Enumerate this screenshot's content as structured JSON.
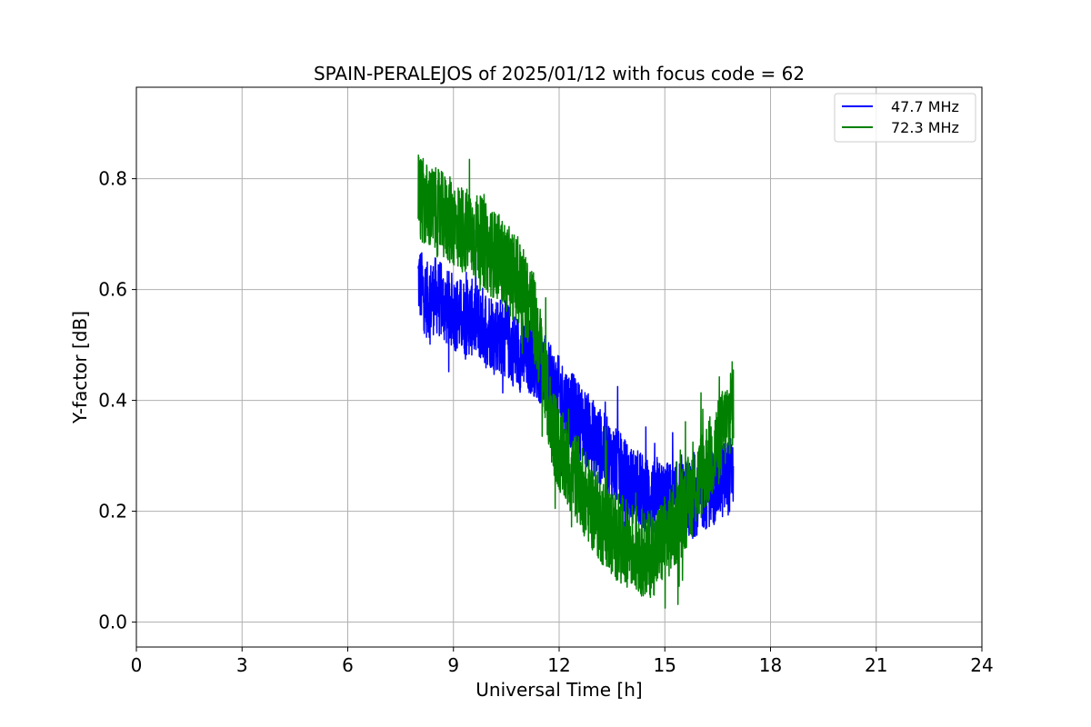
{
  "chart_data": {
    "type": "line",
    "title": "SPAIN-PERALEJOS of 2025/01/12 with focus code = 62",
    "xlabel": "Universal Time [h]",
    "ylabel": "Y-factor [dB]",
    "xlim": [
      0,
      24
    ],
    "ylim": [
      -0.045,
      0.965
    ],
    "xticks": [
      0,
      3,
      6,
      9,
      12,
      15,
      18,
      21,
      24
    ],
    "xtick_labels": [
      "0",
      "3",
      "6",
      "9",
      "12",
      "15",
      "18",
      "21",
      "24"
    ],
    "yticks": [
      0.0,
      0.2,
      0.4,
      0.6,
      0.8
    ],
    "ytick_labels": [
      "0.0",
      "0.2",
      "0.4",
      "0.6",
      "0.8"
    ],
    "grid": true,
    "legend_position": "top-right",
    "series": [
      {
        "name": "47.7 MHz",
        "color": "#0000ff",
        "x": [
          8.0,
          8.1,
          8.25,
          8.5,
          8.75,
          9.0,
          9.25,
          9.5,
          9.75,
          10.0,
          10.25,
          10.5,
          10.75,
          11.0,
          11.25,
          11.5,
          11.75,
          12.0,
          12.25,
          12.5,
          12.75,
          13.0,
          13.25,
          13.5,
          13.75,
          14.0,
          14.25,
          14.5,
          14.75,
          15.0,
          15.25,
          15.5,
          15.75,
          16.0,
          16.25,
          16.5,
          16.75,
          16.95
        ],
        "y": [
          0.62,
          0.6,
          0.58,
          0.59,
          0.57,
          0.56,
          0.55,
          0.55,
          0.54,
          0.53,
          0.52,
          0.51,
          0.49,
          0.48,
          0.48,
          0.46,
          0.43,
          0.41,
          0.39,
          0.37,
          0.35,
          0.33,
          0.31,
          0.29,
          0.27,
          0.25,
          0.24,
          0.23,
          0.22,
          0.22,
          0.22,
          0.22,
          0.22,
          0.23,
          0.24,
          0.25,
          0.26,
          0.27
        ],
        "spread": 0.07
      },
      {
        "name": "72.3 MHz",
        "color": "#008000",
        "x": [
          8.0,
          8.1,
          8.25,
          8.5,
          8.75,
          9.0,
          9.25,
          9.5,
          9.75,
          10.0,
          10.25,
          10.5,
          10.75,
          11.0,
          11.25,
          11.5,
          11.75,
          12.0,
          12.25,
          12.5,
          12.75,
          13.0,
          13.25,
          13.5,
          13.75,
          14.0,
          14.25,
          14.5,
          14.75,
          15.0,
          15.25,
          15.5,
          15.75,
          16.0,
          16.25,
          16.5,
          16.75,
          16.95
        ],
        "y": [
          0.78,
          0.76,
          0.75,
          0.74,
          0.73,
          0.72,
          0.71,
          0.7,
          0.69,
          0.67,
          0.66,
          0.64,
          0.62,
          0.6,
          0.56,
          0.48,
          0.37,
          0.31,
          0.28,
          0.26,
          0.23,
          0.2,
          0.18,
          0.16,
          0.15,
          0.14,
          0.13,
          0.12,
          0.13,
          0.15,
          0.17,
          0.2,
          0.23,
          0.26,
          0.29,
          0.32,
          0.36,
          0.4
        ],
        "spread": 0.08
      }
    ]
  }
}
